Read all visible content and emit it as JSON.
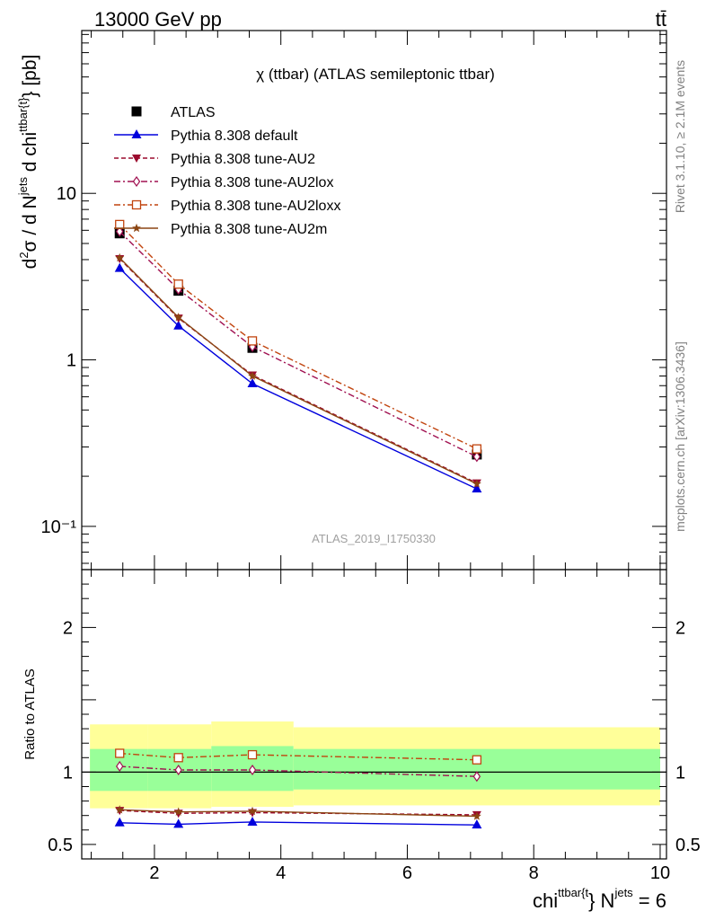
{
  "header": {
    "process": "13000 GeV pp",
    "final_state": "tt̄"
  },
  "side_labels": {
    "rivet": "Rivet 3.1.10, ≥ 2.1M events",
    "site": "mcplots.cern.ch [arXiv:1306.3436]"
  },
  "chart_data": [
    {
      "type": "line",
      "panel": "main",
      "title": "χ (ttbar) (ATLAS semileptonic ttbar)",
      "watermark": "ATLAS_2019_I1750330",
      "ylabel": "d²σ / d N^jets d chi^{ttbar{t}} [pb]",
      "ylog": true,
      "xlim": [
        0.85,
        10.1
      ],
      "ylim": [
        0.055,
        95
      ],
      "yticks": [
        {
          "v": 0.1,
          "label": "10⁻¹"
        },
        {
          "v": 1,
          "label": "1"
        },
        {
          "v": 10,
          "label": "10"
        }
      ],
      "legend_placement": "top-left",
      "x": [
        1.45,
        2.38,
        3.55,
        7.1
      ],
      "series": [
        {
          "name": "ATLAS",
          "color": "#000000",
          "marker": "square-filled",
          "style": "none",
          "values": [
            5.75,
            2.6,
            1.18,
            0.27
          ]
        },
        {
          "name": "Pythia 8.308 default",
          "color": "#0000dd",
          "marker": "triangle-up",
          "style": "solid",
          "values": [
            3.55,
            1.6,
            0.72,
            0.168
          ]
        },
        {
          "name": "Pythia 8.308 tune-AU2",
          "color": "#9b0a2e",
          "marker": "triangle-down",
          "style": "dash",
          "values": [
            4.05,
            1.78,
            0.81,
            0.182
          ]
        },
        {
          "name": "Pythia 8.308 tune-AU2lox",
          "color": "#a01050",
          "marker": "diamond-open",
          "style": "dashdot",
          "values": [
            5.9,
            2.65,
            1.2,
            0.262
          ]
        },
        {
          "name": "Pythia 8.308 tune-AU2loxx",
          "color": "#c1440e",
          "marker": "square-open",
          "style": "dashdot",
          "values": [
            6.5,
            2.85,
            1.3,
            0.292
          ]
        },
        {
          "name": "Pythia 8.308 tune-AU2m",
          "color": "#8b4513",
          "marker": "star",
          "style": "solid",
          "values": [
            4.1,
            1.8,
            0.8,
            0.18
          ]
        }
      ]
    },
    {
      "type": "line",
      "panel": "ratio",
      "ylabel": "Ratio to ATLAS",
      "xlabel": "chi^{ttbar{t}} N^{jets} = 6",
      "ylim": [
        0.4,
        2.4
      ],
      "yticks": [
        {
          "v": 0.5,
          "label": "0.5"
        },
        {
          "v": 1,
          "label": "1"
        },
        {
          "v": 2,
          "label": "2"
        }
      ],
      "xticks": [
        2,
        4,
        6,
        8,
        10
      ],
      "xlim": [
        0.85,
        10.1
      ],
      "bands": {
        "edges": [
          0.98,
          1.9,
          2.9,
          4.2,
          10.0
        ],
        "yellow": [
          [
            0.75,
            1.33
          ],
          [
            0.75,
            1.33
          ],
          [
            0.76,
            1.35
          ],
          [
            0.77,
            1.31
          ]
        ],
        "green": [
          [
            0.87,
            1.16
          ],
          [
            0.87,
            1.16
          ],
          [
            0.87,
            1.18
          ],
          [
            0.88,
            1.16
          ]
        ]
      },
      "x": [
        1.45,
        2.38,
        3.55,
        7.1
      ],
      "series": [
        {
          "name": "Pythia 8.308 default",
          "color": "#0000dd",
          "marker": "triangle-up",
          "style": "solid",
          "values": [
            0.65,
            0.64,
            0.655,
            0.635
          ]
        },
        {
          "name": "Pythia 8.308 tune-AU2",
          "color": "#9b0a2e",
          "marker": "triangle-down",
          "style": "dash",
          "values": [
            0.735,
            0.715,
            0.72,
            0.705
          ]
        },
        {
          "name": "Pythia 8.308 tune-AU2lox",
          "color": "#a01050",
          "marker": "diamond-open",
          "style": "dashdot",
          "values": [
            1.04,
            1.015,
            1.015,
            0.97
          ]
        },
        {
          "name": "Pythia 8.308 tune-AU2loxx",
          "color": "#c1440e",
          "marker": "square-open",
          "style": "dashdot",
          "values": [
            1.13,
            1.1,
            1.12,
            1.085
          ]
        },
        {
          "name": "Pythia 8.308 tune-AU2m",
          "color": "#8b4513",
          "marker": "star",
          "style": "solid",
          "values": [
            0.74,
            0.725,
            0.73,
            0.695
          ]
        }
      ]
    }
  ]
}
